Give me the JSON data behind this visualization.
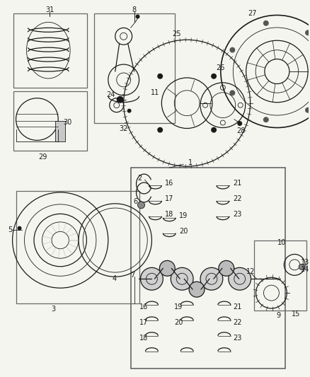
{
  "bg_color": "#f5f5f0",
  "fig_width": 4.38,
  "fig_height": 5.33,
  "dpi": 100,
  "dark": "#1a1a1a",
  "gray": "#666666",
  "lgray": "#aaaaaa"
}
